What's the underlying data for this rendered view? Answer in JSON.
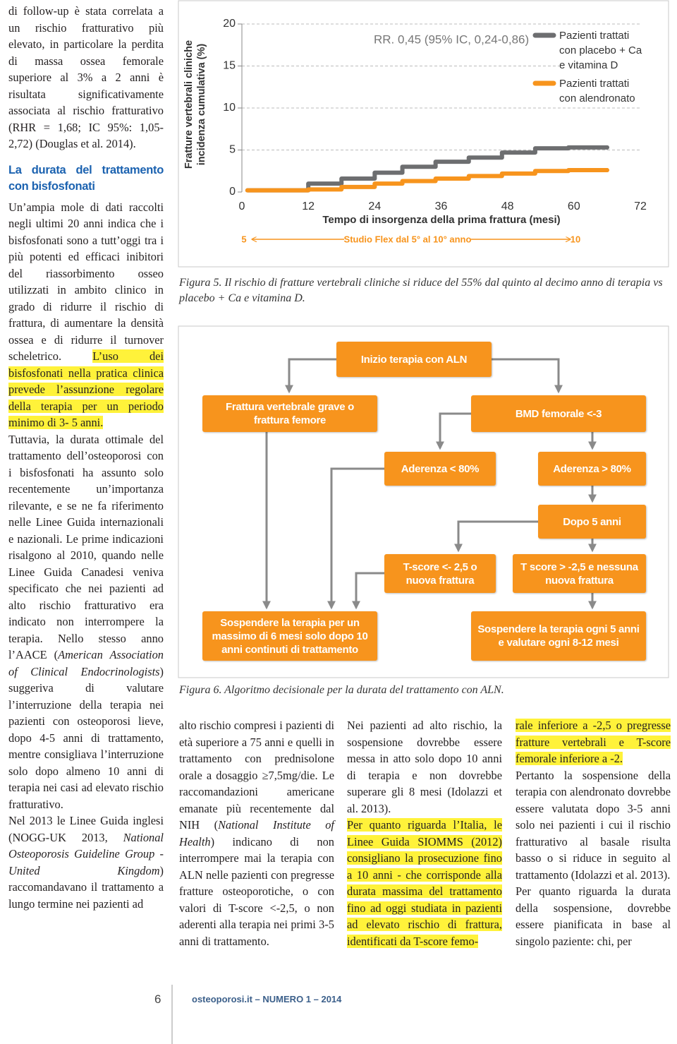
{
  "columns": [
    [
      {
        "runs": [
          {
            "text": "di follow-up è stata correlata a un rischio fratturativo più elevato, in particolare la perdita di massa ossea femorale superiore al 3% a 2 anni è risultata significativamente associata al rischio fratturativo (RHR = 1,68; IC 95%: 1,05-2,72) (Douglas et al. 2014)."
          }
        ]
      },
      {
        "heading": "La durata del trattamento con bisfosfonati"
      },
      {
        "runs": [
          {
            "text": "Un’ampia mole di dati raccolti negli ultimi 20 anni indica che i bisfosfonati sono a tutt’oggi tra i più potenti ed efficaci inibitori del riassorbimento osseo utilizzati in ambito clinico in grado di ridurre il rischio di frattura, di aumentare la densità ossea e di ridurre il turnover scheletrico. "
          },
          {
            "text": "L’uso dei bisfosfonati nella pratica clinica prevede l’assunzione regolare della terapia per un periodo minimo di 3- 5 anni.",
            "mark": true
          }
        ]
      },
      {
        "runs": [
          {
            "text": "Tuttavia, la durata ottimale del trattamento dell’osteoporosi con i bisfosfonati ha assunto solo recentemente un’importanza rilevante, e se ne fa riferimento nelle Linee Guida internazionali e nazionali. Le prime indicazioni risalgono al 2010, quando nelle Linee Guida Canadesi veniva specificato che nei pazienti ad alto rischio fratturativo era indicato non interrompere la terapia. Nello stesso anno l’AACE ("
          },
          {
            "text": "American Association of Clinical Endocrinologists",
            "em": true
          },
          {
            "text": ") suggeriva di valutare l’interruzione della terapia nei pazienti con osteoporosi lieve, dopo 4-5 anni di trattamento, mentre consigliava l’interruzione solo dopo almeno 10 anni di terapia nei casi ad elevato rischio fratturativo."
          }
        ]
      },
      {
        "runs": [
          {
            "text": "Nel 2013 le Linee Guida inglesi (NOGG-UK 2013, "
          },
          {
            "text": "National Osteoporosis Guideline Group - United Kingdom",
            "em": true
          },
          {
            "text": ") raccomandavano il trattamento a lungo termine nei pazienti ad"
          }
        ]
      }
    ],
    [
      {
        "runs": [
          {
            "text": "alto rischio compresi i pazienti di età superiore a 75 anni e quelli in trattamento con prednisolone orale a dosaggio ≥7,5mg/die. Le raccomandazioni americane emanate più recentemente dal NIH ("
          },
          {
            "text": "National Institute of Health",
            "em": true
          },
          {
            "text": ") indicano di non interrompere mai la terapia con ALN nelle pazienti con pregresse fratture osteoporotiche, o con valori di T-score <-2,5, o non aderenti alla terapia nei primi 3-5 anni di trattamento."
          }
        ]
      }
    ],
    [
      {
        "runs": [
          {
            "text": "Nei pazienti ad alto rischio, la sospensione dovrebbe essere messa in atto solo dopo 10 anni di terapia e non dovrebbe superare gli 8 mesi (Idolazzi et al. 2013)."
          }
        ]
      },
      {
        "runs": [
          {
            "text": "Per quanto riguarda l’Italia, le Linee Guida SIOMMS (2012) consigliano la prosecuzione fino a 10 anni - che corrisponde alla durata massima del trattamento fino ad oggi studiata in pazienti ad elevato rischio di frattura, identificati da T-score femo-",
            "mark": true
          }
        ]
      }
    ],
    [
      {
        "runs": [
          {
            "text": "rale inferiore a -2,5 o pregresse fratture vertebrali e T-score femorale inferiore a -2.",
            "mark": true
          }
        ]
      },
      {
        "runs": [
          {
            "text": "Pertanto la sospensione della terapia con alendronato dovrebbe essere valutata dopo 3-5 anni solo nei pazienti i cui il rischio fratturativo al basale risulta basso o si riduce in seguito al trattamento (Idolazzi et al. 2013)."
          }
        ]
      },
      {
        "runs": [
          {
            "text": "Per quanto riguarda la durata della sospensione, dovrebbe essere pianificata in base al singolo paziente: chi, per"
          }
        ]
      }
    ]
  ],
  "chart_data": {
    "type": "step",
    "ylabel": "Fratture vertebrali cliniche incidenza cumulativa (%)",
    "xlabel": "Tempo di insorgenza della prima frattura (mesi)",
    "annotation": "RR. 0,45 (95% IC, 0,24-0,86)",
    "xlim": [
      0,
      72
    ],
    "xticks": [
      0,
      12,
      24,
      36,
      48,
      60,
      72
    ],
    "ylim": [
      0,
      20
    ],
    "yticks": [
      0,
      5,
      10,
      15,
      20
    ],
    "grid": true,
    "series": [
      {
        "name": "Pazienti trattati con placebo + Ca e vitamina D",
        "color": "#6d6e70",
        "x": [
          1,
          12,
          18,
          24,
          29,
          35,
          41,
          47,
          53,
          59,
          66
        ],
        "values": [
          0.2,
          1.0,
          1.6,
          2.3,
          3.0,
          3.6,
          4.1,
          4.7,
          5.2,
          5.3,
          5.3
        ]
      },
      {
        "name": "Pazienti trattati con alendronato",
        "color": "#f7941d",
        "x": [
          1,
          12,
          18,
          24,
          29,
          35,
          41,
          47,
          53,
          59,
          66
        ],
        "values": [
          0.2,
          0.3,
          0.6,
          1.0,
          1.3,
          1.6,
          1.9,
          2.2,
          2.5,
          2.6,
          2.6
        ]
      }
    ],
    "study_bar": {
      "start_label": "5",
      "label": "Studio Flex dal 5° al 10° anno",
      "end_label": "10"
    }
  },
  "figure_5_caption": "Figura 5. Il rischio di fratture vertebrali cliniche si riduce del 55% dal quinto al decimo anno di terapia vs placebo + Ca e vitamina D.",
  "flowchart": {
    "nodes": [
      {
        "label": "Inizio terapia con ALN"
      },
      {
        "label": "Frattura vertebrale grave o frattura femore"
      },
      {
        "label": "BMD femorale <-3"
      },
      {
        "label": "Aderenza < 80%"
      },
      {
        "label": "Aderenza > 80%"
      },
      {
        "label": "Dopo 5 anni"
      },
      {
        "label": "T-score <- 2,5 o nuova frattura"
      },
      {
        "label": "T score > -2,5 e nessuna nuova frattura"
      },
      {
        "label": "Sospendere la terapia per un massimo di 6 mesi solo dopo 10 anni continuti di trattamento"
      },
      {
        "label": "Sospendere la terapia ogni 5 anni e valutare ogni 8-12 mesi"
      }
    ]
  },
  "figure_6_caption": "Figura 6. Algoritmo decisionale per la durata del trattamento con ALN.",
  "footer": {
    "page_number": "6",
    "journal": "osteoporosi.it – NUMERO 1 – 2014"
  }
}
